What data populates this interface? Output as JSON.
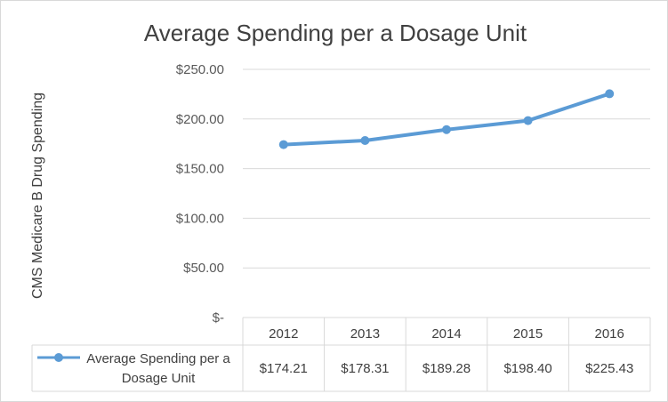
{
  "chart_data": {
    "type": "line",
    "title": "Average Spending per a Dosage Unit",
    "ylabel": "CMS Medicare B  Drug Spending",
    "xlabel": "",
    "categories": [
      "2012",
      "2013",
      "2014",
      "2015",
      "2016"
    ],
    "series": [
      {
        "name": "Average Spending per a Dosage Unit",
        "name_lines": [
          "Average Spending per a",
          "Dosage Unit"
        ],
        "values": [
          174.21,
          178.31,
          189.28,
          198.4,
          225.43
        ],
        "value_labels": [
          "$174.21",
          "$178.31",
          "$189.28",
          "$198.40",
          "$225.43"
        ],
        "color": "#5b9bd5"
      }
    ],
    "ylim": [
      0,
      250
    ],
    "yticks": [
      250,
      200,
      150,
      100,
      50,
      0
    ],
    "ytick_labels": [
      "$250.00",
      "$200.00",
      "$150.00",
      "$100.00",
      "$50.00",
      "$-"
    ],
    "grid": true,
    "legend": "data-table"
  }
}
